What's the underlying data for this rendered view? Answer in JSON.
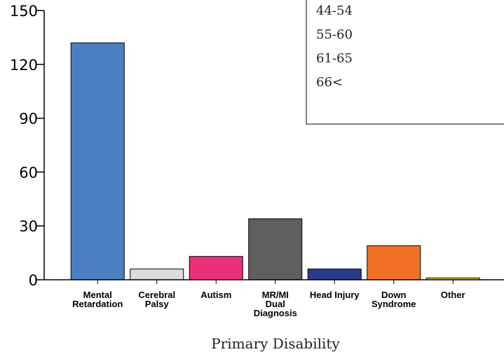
{
  "chart_data": {
    "type": "bar",
    "categories": [
      [
        "Mental",
        "Retardation"
      ],
      [
        "Cerebral",
        "Palsy"
      ],
      [
        "Autism"
      ],
      [
        "MR/MI",
        "Dual",
        "Diagnosis"
      ],
      [
        "Head Injury"
      ],
      [
        "Down",
        "Syndrome"
      ],
      [
        "Other"
      ]
    ],
    "values": [
      132,
      6,
      13,
      34,
      6,
      19,
      1
    ],
    "colors": [
      "#4a7fc4",
      "#dcdcdc",
      "#ea2f7d",
      "#5f5f5f",
      "#283c8c",
      "#f07126",
      "#e8e030"
    ],
    "xlabel": "Primary Disability",
    "ylim": [
      0,
      150
    ],
    "yticks": [
      0,
      30,
      60,
      90,
      120,
      150
    ],
    "legend": {
      "placement": "top-right",
      "entries": [
        "44-54",
        "55-60",
        "61-65",
        "66<"
      ]
    }
  }
}
